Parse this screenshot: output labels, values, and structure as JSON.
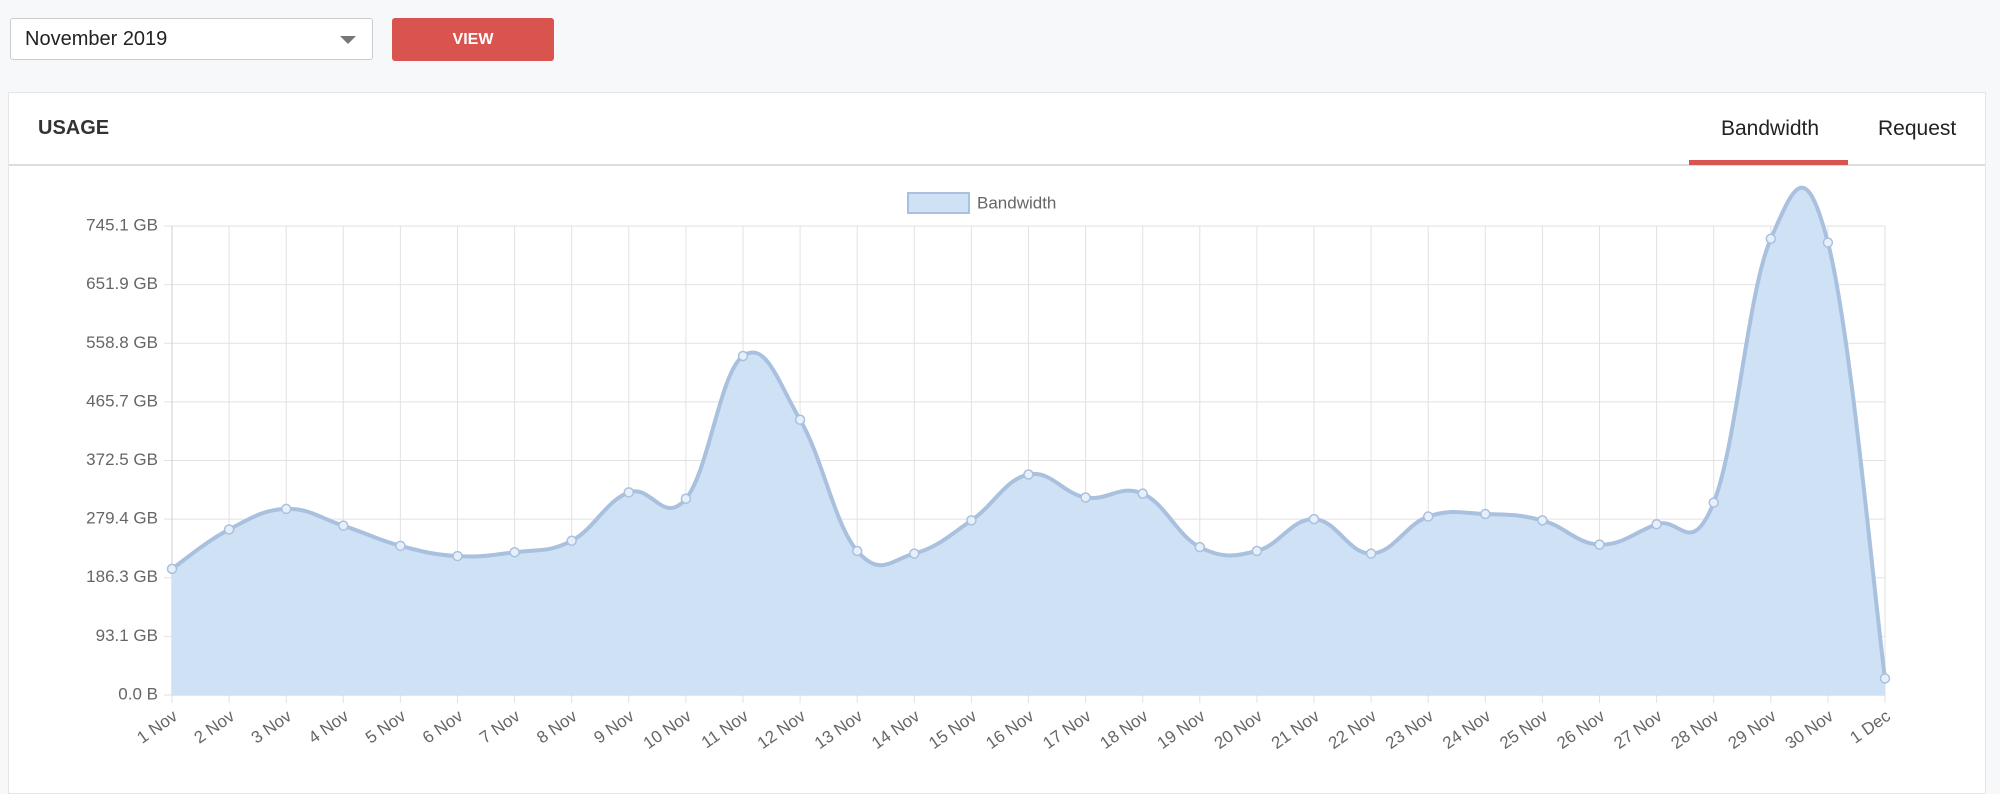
{
  "controls": {
    "month_select": "November 2019",
    "view_button": "VIEW"
  },
  "card": {
    "title": "USAGE",
    "tabs": [
      "Bandwidth",
      "Request"
    ]
  },
  "chart_data": {
    "type": "area",
    "categories": [
      "1 Nov",
      "2 Nov",
      "3 Nov",
      "4 Nov",
      "5 Nov",
      "6 Nov",
      "7 Nov",
      "8 Nov",
      "9 Nov",
      "10 Nov",
      "11 Nov",
      "12 Nov",
      "13 Nov",
      "14 Nov",
      "15 Nov",
      "16 Nov",
      "17 Nov",
      "18 Nov",
      "19 Nov",
      "20 Nov",
      "21 Nov",
      "22 Nov",
      "23 Nov",
      "24 Nov",
      "25 Nov",
      "26 Nov",
      "27 Nov",
      "28 Nov",
      "29 Nov",
      "30 Nov",
      "1 Dec"
    ],
    "series": [
      {
        "name": "Bandwidth",
        "color": "#a9c1de",
        "fill": "#cfe2f5",
        "values": [
          200.4,
          263,
          295.6,
          269,
          237,
          220.7,
          226.8,
          245,
          322,
          311.8,
          538.6,
          437.3,
          228.8,
          224.7,
          277.4,
          350.3,
          313.8,
          319.9,
          234.9,
          228.8,
          279.4,
          224.7,
          283.5,
          287.5,
          277.4,
          238.9,
          271.3,
          305.7,
          724.8,
          718.8,
          26.3
        ]
      }
    ],
    "ylim": [
      0,
      745.1
    ],
    "yticks": [
      {
        "value": 0,
        "label": "0.0 B"
      },
      {
        "value": 93.1,
        "label": "93.1 GB"
      },
      {
        "value": 186.3,
        "label": "186.3 GB"
      },
      {
        "value": 279.4,
        "label": "279.4 GB"
      },
      {
        "value": 372.5,
        "label": "372.5 GB"
      },
      {
        "value": 465.7,
        "label": "465.7 GB"
      },
      {
        "value": 558.8,
        "label": "558.8 GB"
      },
      {
        "value": 651.9,
        "label": "651.9 GB"
      },
      {
        "value": 745.1,
        "label": "745.1 GB"
      }
    ],
    "grid": true,
    "legend": "top"
  }
}
